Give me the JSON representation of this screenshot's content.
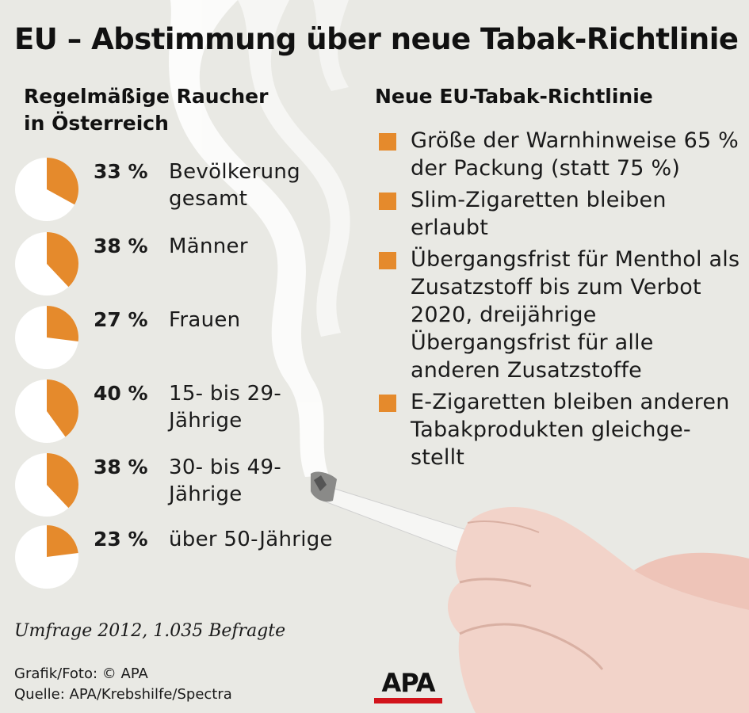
{
  "title": "EU – Abstimmung über neue Tabak-Richtlinie",
  "left_heading": "Regelmäßige Raucher in Österreich",
  "right_heading": "Neue EU-Tabak-Richtlinie",
  "colors": {
    "accent": "#e58a2c",
    "pie_rest": "#ffffff",
    "background": "#e9e9e4",
    "logo_red": "#d2141c"
  },
  "chart_data": {
    "type": "pie",
    "title": "Regelmäßige Raucher in Österreich",
    "series": [
      {
        "name": "Bevölkerung gesamt",
        "value": 33,
        "pct_label": "33 %",
        "label": "Bevölkerung gesamt"
      },
      {
        "name": "Männer",
        "value": 38,
        "pct_label": "38 %",
        "label": "Männer"
      },
      {
        "name": "Frauen",
        "value": 27,
        "pct_label": "27 %",
        "label": "Frauen"
      },
      {
        "name": "15- bis 29-Jährige",
        "value": 40,
        "pct_label": "40 %",
        "label": "15- bis 29-Jährige"
      },
      {
        "name": "30- bis 49-Jährige",
        "value": 38,
        "pct_label": "38 %",
        "label": "30- bis 49-Jährige"
      },
      {
        "name": "über 50-Jährige",
        "value": 23,
        "pct_label": "23 %",
        "label": "über 50-Jährige"
      }
    ]
  },
  "bullets": [
    "Größe der Warnhinweise 65 % der Packung (statt 75 %)",
    "Slim-Zigaretten bleiben erlaubt",
    "Übergangsfrist für Menthol als Zusatzstoff bis zum Verbot 2020, dreijährige Übergangsfrist für alle anderen Zusatzstoffe",
    "E-Zigaretten bleiben anderen Tabakprodukten gleichge-stellt"
  ],
  "survey_note": "Umfrage 2012, 1.035 Befragte",
  "credit": "Grafik/Foto: © APA",
  "source": "Quelle: APA/Krebshilfe/Spectra",
  "logo_text": "APA"
}
